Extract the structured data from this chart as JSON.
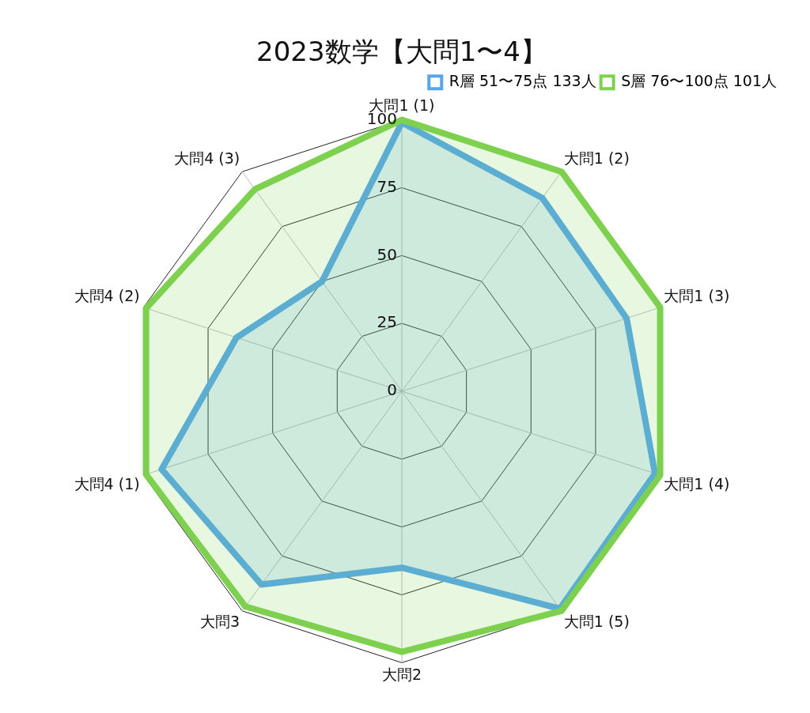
{
  "chart_data": {
    "type": "radar",
    "title": "2023数学【大問1〜4】",
    "categories": [
      "大問1 (1)",
      "大問1 (2)",
      "大問1 (3)",
      "大問1 (4)",
      "大問1 (5)",
      "大問2",
      "大問3",
      "大問4 (1)",
      "大問4 (2)",
      "大問4 (3)"
    ],
    "series": [
      {
        "name": "R層 51〜75点 133人",
        "color": "#55a5ef",
        "values": [
          99,
          88,
          87,
          98,
          99,
          65,
          88,
          93,
          64,
          50
        ]
      },
      {
        "name": "S層 76〜100点 101人",
        "color": "#7ed04f",
        "values": [
          100,
          100,
          100,
          100,
          100,
          96,
          98,
          99,
          99,
          92
        ]
      }
    ],
    "ylim": [
      0,
      100
    ],
    "yticks": [
      0,
      25,
      50,
      75,
      100
    ],
    "grid": true,
    "legend": "top right",
    "marker": "none"
  }
}
